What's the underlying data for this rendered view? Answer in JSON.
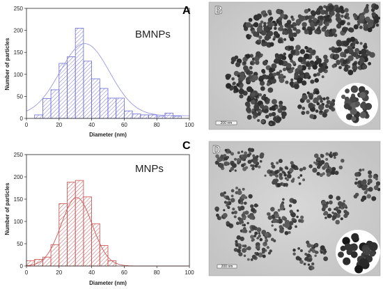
{
  "panel_letters": {
    "a": "A",
    "b": "B",
    "c": "C",
    "d": "D"
  },
  "chart_data": [
    {
      "type": "bar",
      "panel": "A",
      "series_label": "BMNPs",
      "xlabel": "Diameter (nm)",
      "ylabel": "Number of particles",
      "xlim": [
        0,
        100
      ],
      "ylim": [
        0,
        250
      ],
      "xticks": [
        0,
        20,
        40,
        60,
        80,
        100
      ],
      "yticks": [
        0,
        50,
        100,
        150,
        200,
        250
      ],
      "bin_width": 5,
      "bins": [
        5,
        10,
        15,
        20,
        25,
        30,
        35,
        40,
        45,
        50,
        55,
        60,
        65,
        70,
        75,
        80,
        85,
        90
      ],
      "values": [
        8,
        45,
        65,
        125,
        140,
        205,
        130,
        90,
        68,
        46,
        46,
        17,
        10,
        8,
        8,
        5,
        12,
        5
      ],
      "fit_curve": true,
      "color": "#6b6bd6",
      "fit_color": "#9a9ae0",
      "grid": false
    },
    {
      "type": "bar",
      "panel": "C",
      "series_label": "MNPs",
      "xlabel": "Diameter (nm)",
      "ylabel": "Number of particles",
      "xlim": [
        0,
        100
      ],
      "ylim": [
        0,
        250
      ],
      "xticks": [
        0,
        20,
        40,
        60,
        80,
        100
      ],
      "yticks": [
        0,
        50,
        100,
        150,
        200,
        250
      ],
      "bin_width": 5,
      "bins": [
        0,
        5,
        10,
        15,
        20,
        25,
        30,
        35,
        40,
        45,
        50
      ],
      "values": [
        12,
        15,
        20,
        48,
        140,
        188,
        192,
        155,
        95,
        46,
        12
      ],
      "fit_curve": true,
      "color": "#c74a4a",
      "fit_color": "#c95a5a",
      "grid": false
    }
  ],
  "images": {
    "b_scale_label": "200 nm",
    "d_scale_label": "200 nm"
  }
}
